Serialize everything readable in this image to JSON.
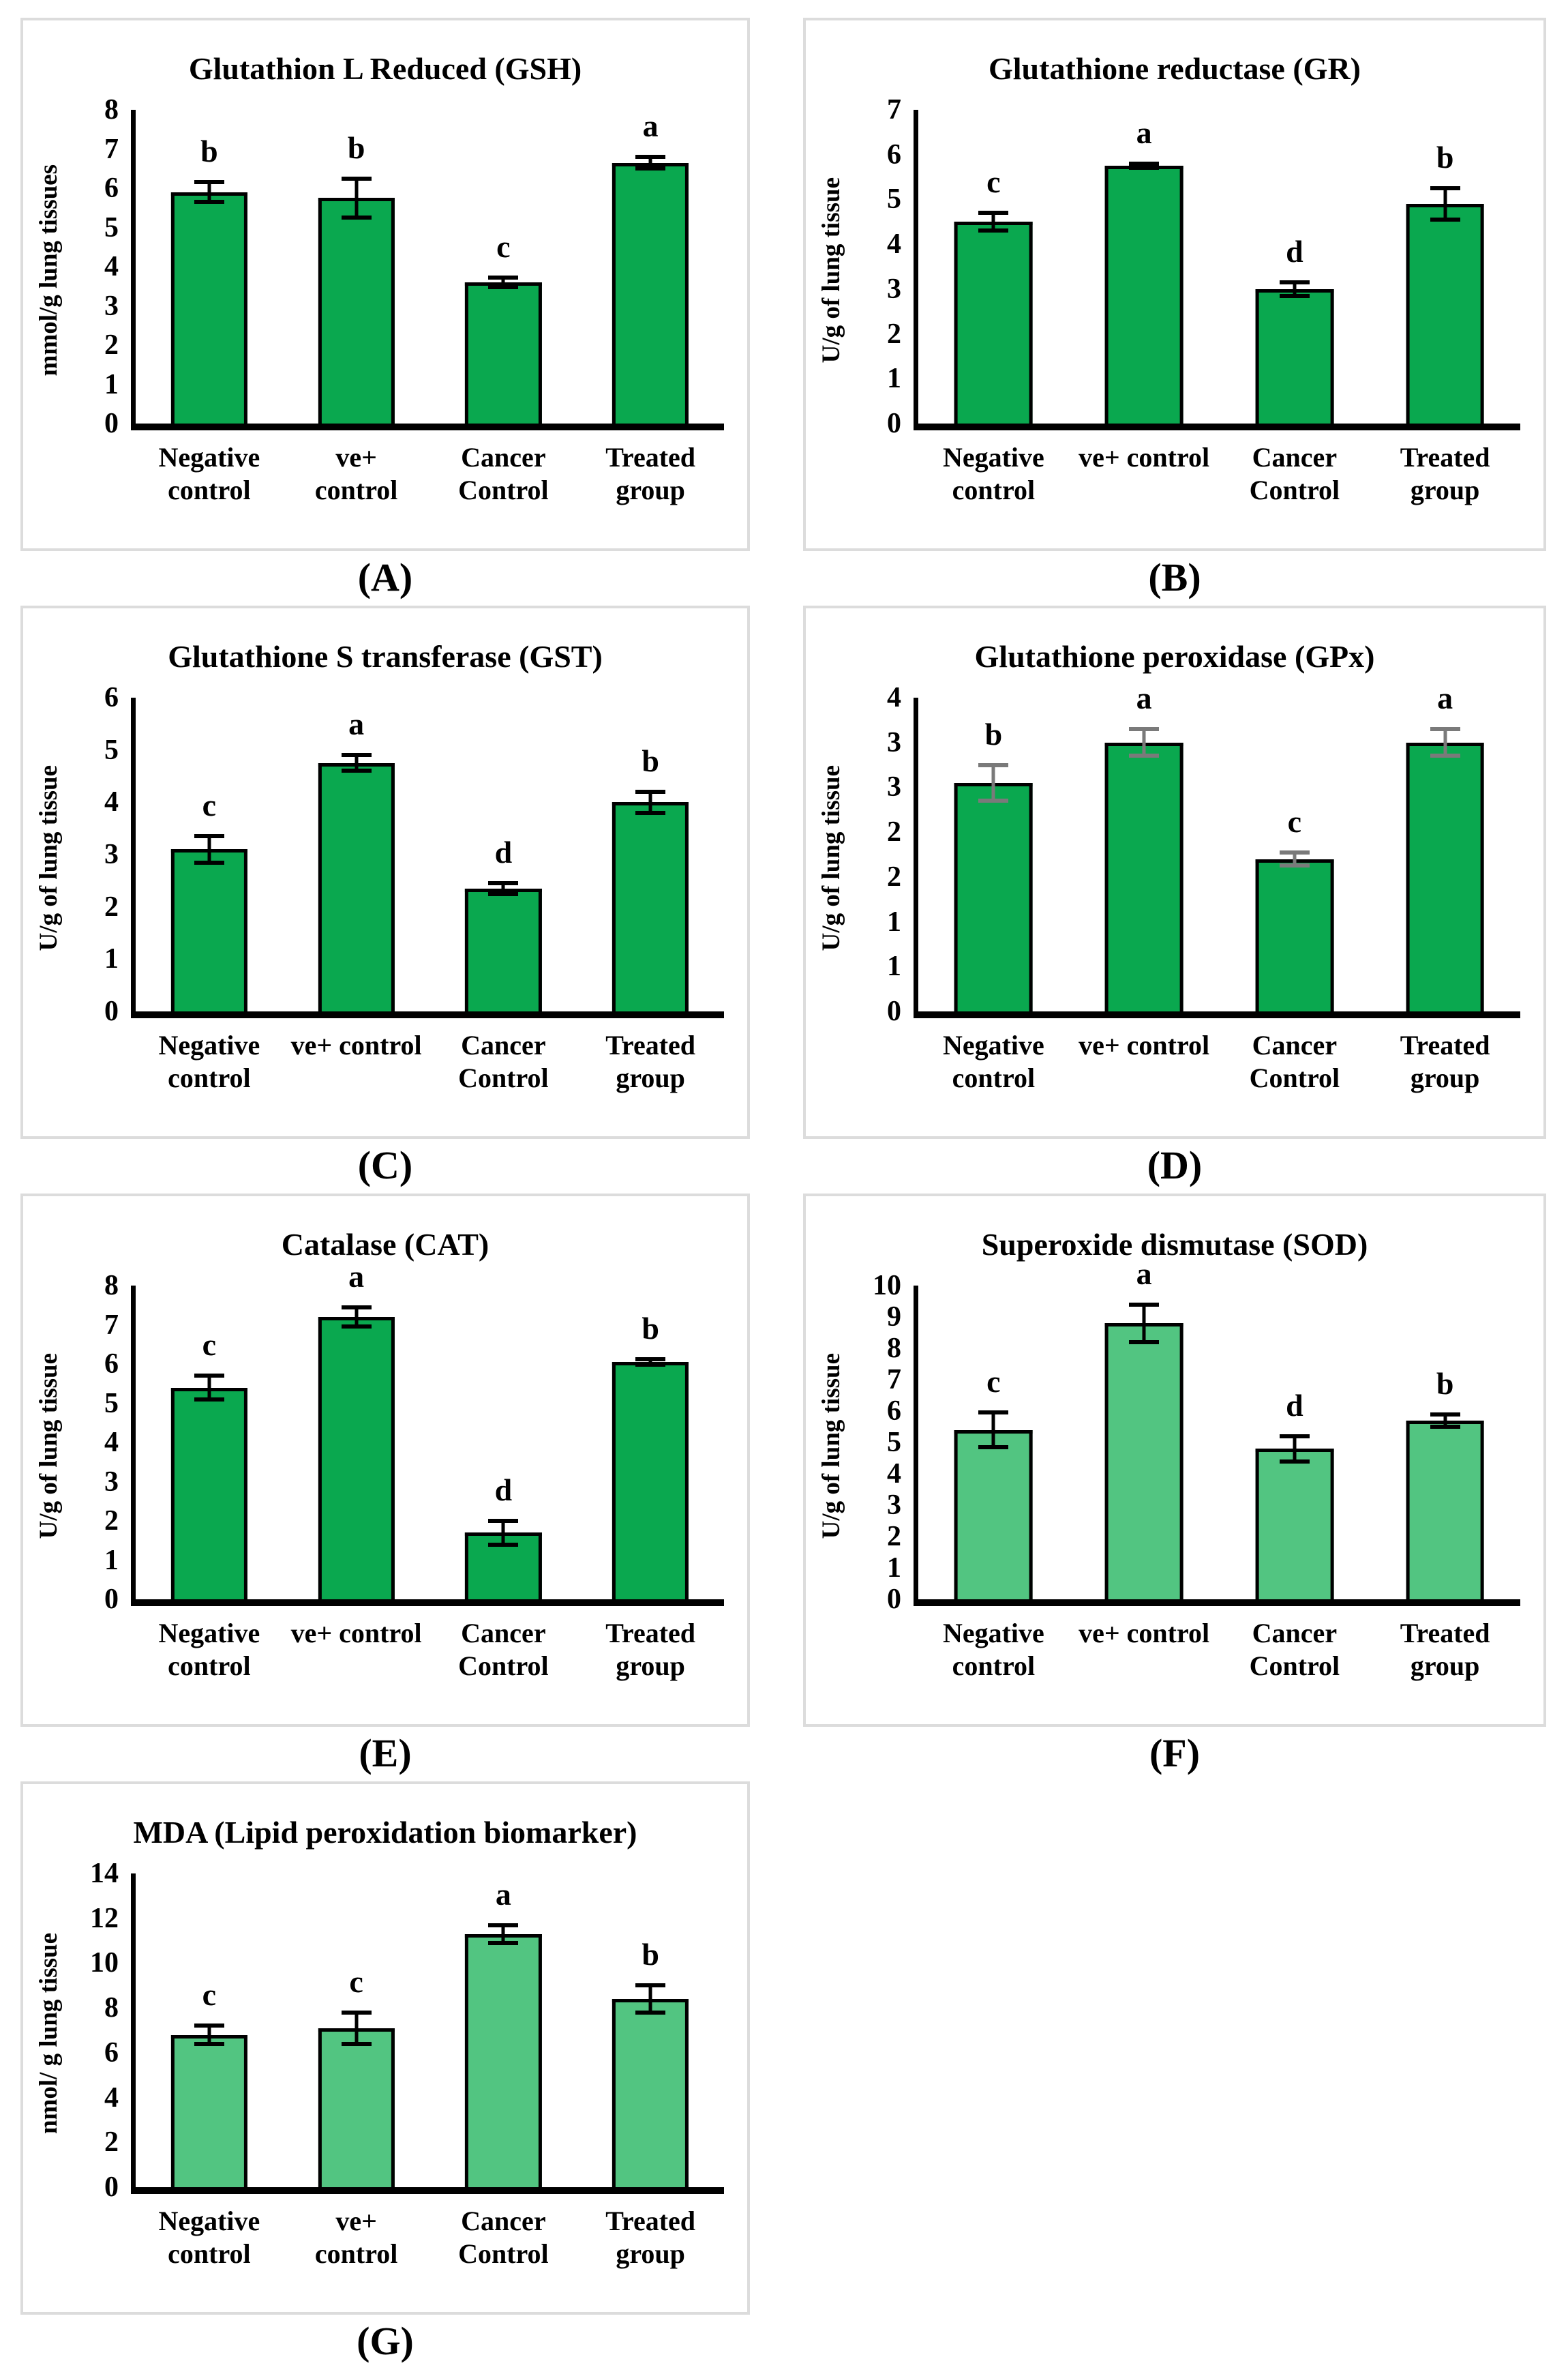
{
  "colors": {
    "dark_green_bar": "#0aa84f",
    "light_green_bar": "#52c581",
    "black": "#000000",
    "gray_error": "#7a7a7a",
    "box_border": "#dcdcdc"
  },
  "panel_labels": [
    "(A)",
    "(B)",
    "(C)",
    "(D)",
    "(E)",
    "(F)",
    "(G)"
  ],
  "chart_data": [
    {
      "type": "bar",
      "panel": "(A)",
      "title": "Glutathion L Reduced (GSH)",
      "ylabel": "mmol/g lung tissues",
      "categories": [
        "Negative\ncontrol",
        "ve+\ncontrol",
        "Cancer\nControl",
        "Treated\ngroup"
      ],
      "values": [
        5.9,
        5.75,
        3.6,
        6.65
      ],
      "errors": [
        0.25,
        0.5,
        0.12,
        0.15
      ],
      "sig_letters": [
        "b",
        "b",
        "c",
        "a"
      ],
      "ylim": [
        0,
        8
      ],
      "yticks": [
        "8",
        "7",
        "6",
        "5",
        "4",
        "3",
        "2",
        "1",
        "0"
      ],
      "bar_color": "#0aa84f",
      "error_color": "#000000",
      "grid": false,
      "legend": false
    },
    {
      "type": "bar",
      "panel": "(B)",
      "title": "Glutathione reductase (GR)",
      "ylabel": "U/g of lung tissue",
      "categories": [
        "Negative\ncontrol",
        "ve+ control",
        "Cancer\nControl",
        "Treated\ngroup"
      ],
      "values": [
        4.5,
        5.75,
        3.0,
        4.9
      ],
      "errors": [
        0.2,
        0.05,
        0.15,
        0.35
      ],
      "sig_letters": [
        "c",
        "a",
        "d",
        "b"
      ],
      "ylim": [
        0,
        7
      ],
      "yticks": [
        "7",
        "6",
        "5",
        "4",
        "3",
        "2",
        "1",
        "0"
      ],
      "bar_color": "#0aa84f",
      "error_color": "#000000",
      "grid": false,
      "legend": false
    },
    {
      "type": "bar",
      "panel": "(C)",
      "title": "Glutathione S transferase (GST)",
      "ylabel": "U/g of lung tissue",
      "categories": [
        "Negative\ncontrol",
        "ve+ control",
        "Cancer\nControl",
        "Treated\ngroup"
      ],
      "values": [
        3.1,
        4.75,
        2.35,
        4.0
      ],
      "errors": [
        0.25,
        0.15,
        0.1,
        0.2
      ],
      "sig_letters": [
        "c",
        "a",
        "d",
        "b"
      ],
      "ylim": [
        0,
        6
      ],
      "yticks": [
        "6",
        "5",
        "4",
        "3",
        "2",
        "1",
        "0"
      ],
      "bar_color": "#0aa84f",
      "error_color": "#000000",
      "grid": false,
      "legend": false
    },
    {
      "type": "bar",
      "panel": "(D)",
      "title": "Glutathione peroxidase (GPx)",
      "ylabel": "U/g of lung tissue",
      "categories": [
        "Negative\ncontrol",
        "ve+ control",
        "Cancer\nControl",
        "Treated\ngroup"
      ],
      "values": [
        2.55,
        3.0,
        1.7,
        3.0
      ],
      "errors": [
        0.2,
        0.15,
        0.07,
        0.15
      ],
      "sig_letters": [
        "b",
        "a",
        "c",
        "a"
      ],
      "ylim": [
        0,
        3.5
      ],
      "yticks": [
        "4",
        "3",
        "3",
        "2",
        "2",
        "1",
        "1",
        "0"
      ],
      "bar_color": "#0aa84f",
      "error_color": "#7a7a7a",
      "grid": false,
      "legend": false
    },
    {
      "type": "bar",
      "panel": "(E)",
      "title": "Catalase (CAT)",
      "ylabel": "U/g of lung tissue",
      "categories": [
        "Negative\ncontrol",
        "ve+ control",
        "Cancer\nControl",
        "Treated\ngroup"
      ],
      "values": [
        5.4,
        7.2,
        1.7,
        6.05
      ],
      "errors": [
        0.3,
        0.25,
        0.3,
        0.07
      ],
      "sig_letters": [
        "c",
        "a",
        "d",
        "b"
      ],
      "ylim": [
        0,
        8
      ],
      "yticks": [
        "8",
        "7",
        "6",
        "5",
        "4",
        "3",
        "2",
        "1",
        "0"
      ],
      "bar_color": "#0aa84f",
      "error_color": "#000000",
      "grid": false,
      "legend": false
    },
    {
      "type": "bar",
      "panel": "(F)",
      "title": "Superoxide dismutase (SOD)",
      "ylabel": "U/g of lung tissue",
      "categories": [
        "Negative\ncontrol",
        "ve+ control",
        "Cancer\nControl",
        "Treated\ngroup"
      ],
      "values": [
        5.4,
        8.8,
        4.8,
        5.7
      ],
      "errors": [
        0.55,
        0.6,
        0.4,
        0.2
      ],
      "sig_letters": [
        "c",
        "a",
        "d",
        "b"
      ],
      "ylim": [
        0,
        10
      ],
      "yticks": [
        "10",
        "9",
        "8",
        "7",
        "6",
        "5",
        "4",
        "3",
        "2",
        "1",
        "0"
      ],
      "bar_color": "#52c581",
      "error_color": "#000000",
      "grid": false,
      "legend": false
    },
    {
      "type": "bar",
      "panel": "(G)",
      "title": "MDA (Lipid peroxidation biomarker)",
      "ylabel": "nmol/ g lung tissue",
      "categories": [
        "Negative\ncontrol",
        "ve+\ncontrol",
        "Cancer\nControl",
        "Treated\ngroup"
      ],
      "values": [
        6.8,
        7.1,
        11.3,
        8.4
      ],
      "errors": [
        0.4,
        0.7,
        0.4,
        0.6
      ],
      "sig_letters": [
        "c",
        "c",
        "a",
        "b"
      ],
      "ylim": [
        0,
        14
      ],
      "yticks": [
        "14",
        "12",
        "10",
        "8",
        "6",
        "4",
        "2",
        "0"
      ],
      "bar_color": "#52c581",
      "error_color": "#000000",
      "grid": false,
      "legend": false
    }
  ]
}
